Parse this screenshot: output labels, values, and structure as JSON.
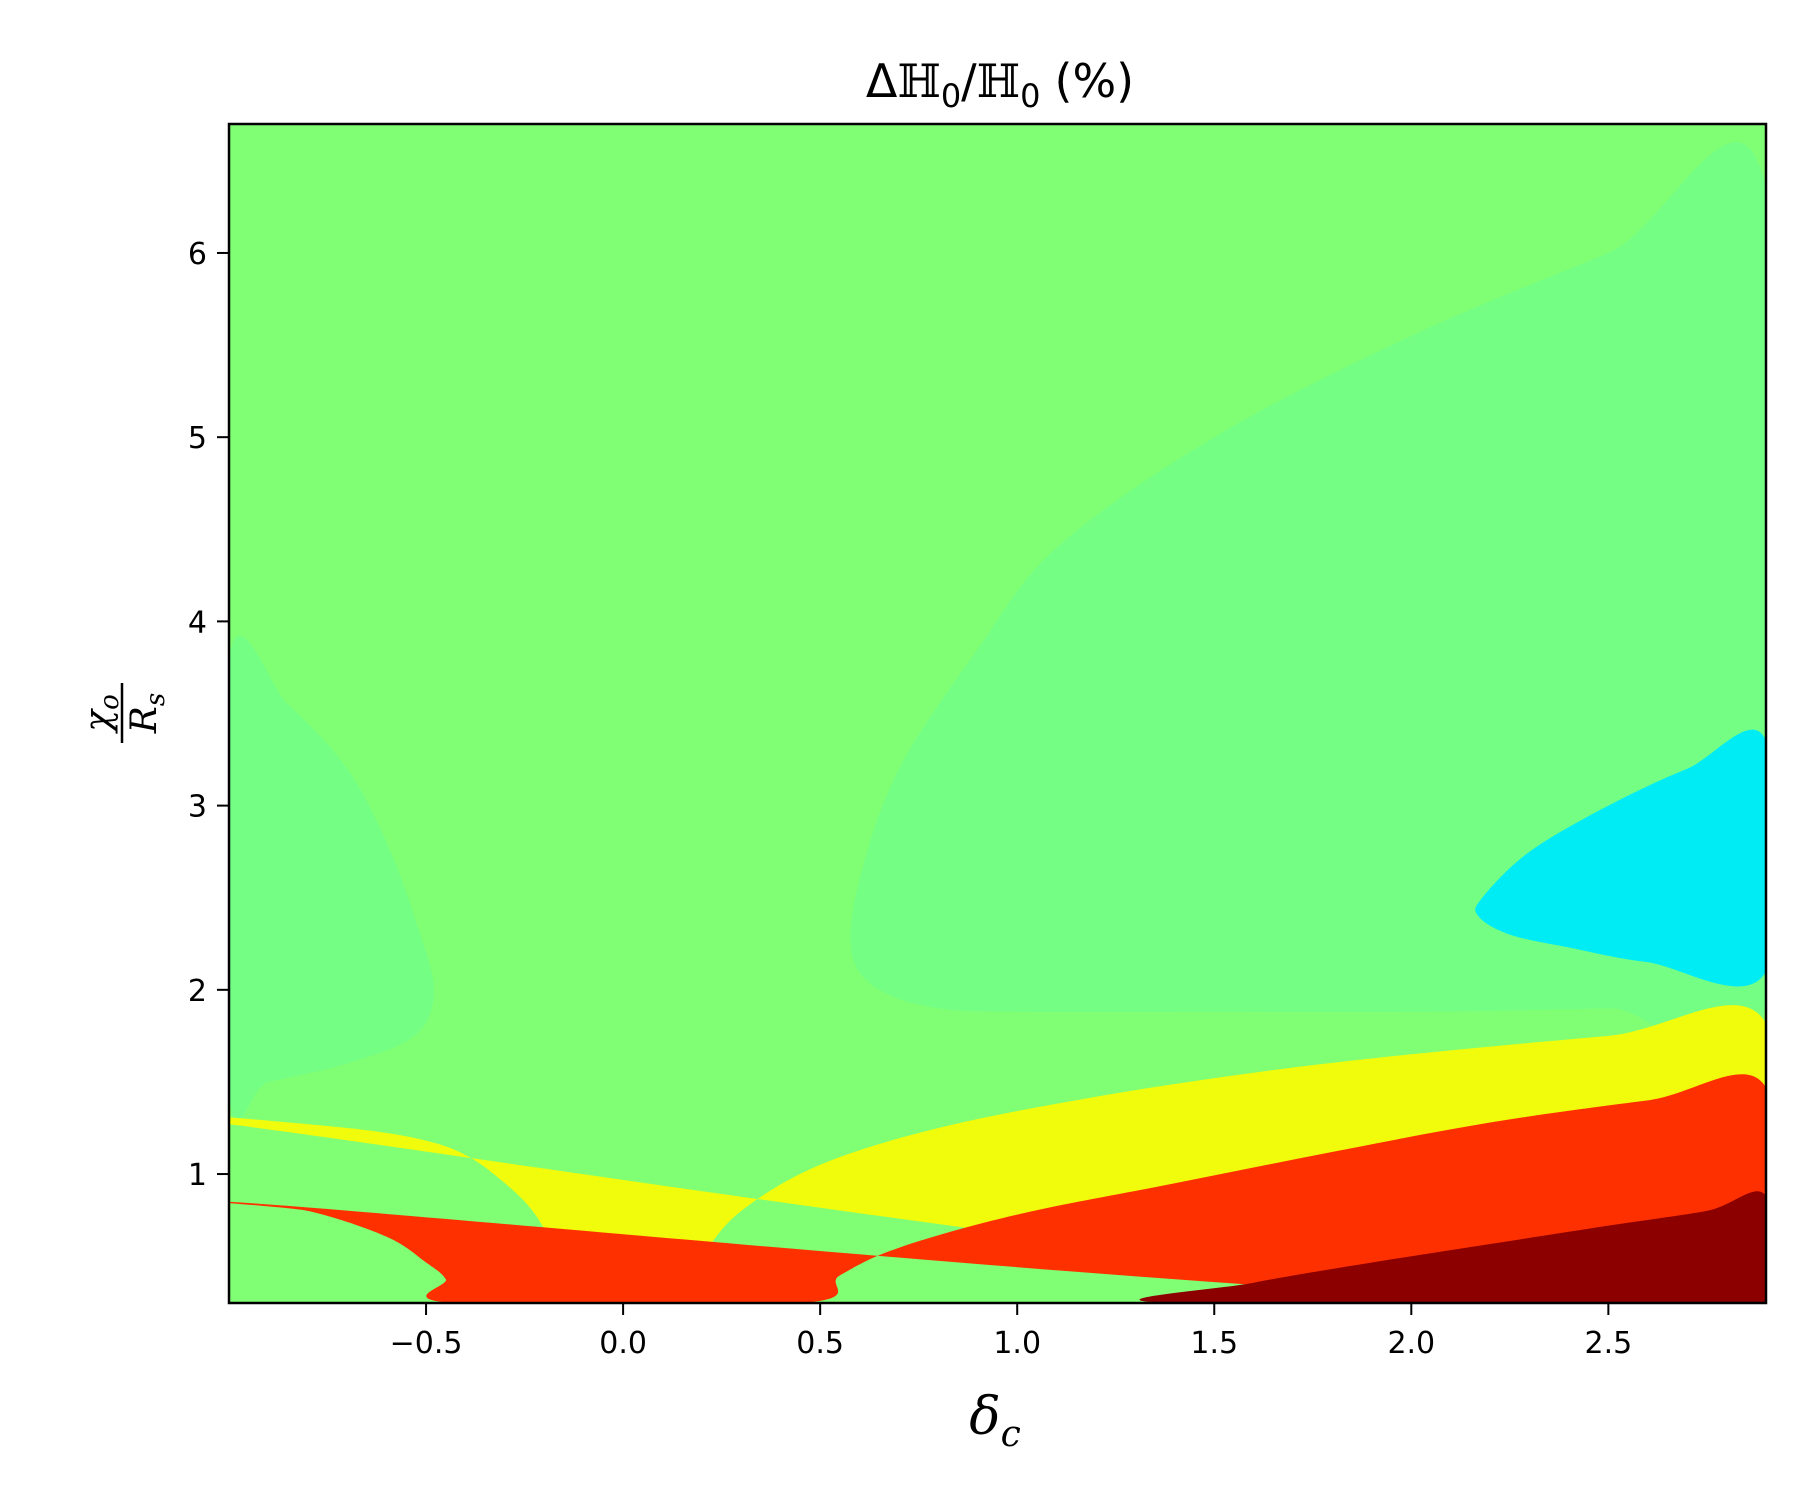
{
  "chart_data": {
    "type": "contour",
    "title": "ΔℍO/ℍO (%)",
    "title_parts": {
      "delta": "Δ",
      "h": "ℍ",
      "sub": "0",
      "slash": "/",
      "unit": "(%)"
    },
    "xlabel": {
      "main": "δ",
      "sub": "c"
    },
    "ylabel": {
      "numerator": "χ",
      "numerator_sub": "o",
      "denominator": "R",
      "denominator_sub": "s"
    },
    "xlim": [
      -1.0,
      2.9
    ],
    "ylim": [
      0.3,
      6.7
    ],
    "xticks": [
      -0.5,
      0.0,
      0.5,
      1.0,
      1.5,
      2.0,
      2.5
    ],
    "xtick_labels": [
      "−0.5",
      "0.0",
      "0.5",
      "1.0",
      "1.5",
      "2.0",
      "2.5"
    ],
    "yticks": [
      1,
      2,
      3,
      4,
      5,
      6
    ],
    "ytick_labels": [
      "1",
      "2",
      "3",
      "4",
      "5",
      "6"
    ],
    "grid": false,
    "legend": "none",
    "levels": [
      {
        "name": "background",
        "color": "#80ff74"
      },
      {
        "name": "upper-right-band",
        "color": "#74ff84"
      },
      {
        "name": "left-lobe",
        "color": "#74ff84"
      },
      {
        "name": "cyan-lobe",
        "color": "#00ecf4"
      },
      {
        "name": "yellow-band",
        "color": "#f0fc0c"
      },
      {
        "name": "red-band",
        "color": "#ff3000"
      },
      {
        "name": "dark-red-band",
        "color": "#8c0000"
      }
    ],
    "regions": [
      {
        "level": "upper-right-band",
        "boundary": [
          [
            2.9,
            6.35
          ],
          [
            2.5,
            6.0
          ],
          [
            2.0,
            5.55
          ],
          [
            1.5,
            5.0
          ],
          [
            1.1,
            4.4
          ],
          [
            0.9,
            3.85
          ],
          [
            0.7,
            3.2
          ],
          [
            0.6,
            2.6
          ],
          [
            0.58,
            2.2
          ],
          [
            0.65,
            2.0
          ],
          [
            0.8,
            1.9
          ],
          [
            1.0,
            1.88
          ],
          [
            1.5,
            1.88
          ],
          [
            2.0,
            1.88
          ],
          [
            2.5,
            1.9
          ],
          [
            2.9,
            1.93
          ]
        ]
      },
      {
        "level": "left-lobe",
        "boundary": [
          [
            -1.0,
            3.8
          ],
          [
            -0.85,
            3.55
          ],
          [
            -0.7,
            3.2
          ],
          [
            -0.6,
            2.8
          ],
          [
            -0.53,
            2.4
          ],
          [
            -0.48,
            2.0
          ],
          [
            -0.53,
            1.75
          ],
          [
            -0.7,
            1.6
          ],
          [
            -0.9,
            1.5
          ],
          [
            -1.0,
            1.45
          ]
        ]
      },
      {
        "level": "cyan-lobe",
        "boundary": [
          [
            2.9,
            3.35
          ],
          [
            2.7,
            3.2
          ],
          [
            2.5,
            3.0
          ],
          [
            2.3,
            2.75
          ],
          [
            2.18,
            2.5
          ],
          [
            2.17,
            2.4
          ],
          [
            2.25,
            2.3
          ],
          [
            2.4,
            2.23
          ],
          [
            2.6,
            2.15
          ],
          [
            2.9,
            2.1
          ]
        ]
      },
      {
        "level": "yellow-band",
        "boundary": [
          [
            -1.0,
            1.27
          ],
          [
            -0.7,
            1.25
          ],
          [
            -0.45,
            1.15
          ],
          [
            -0.3,
            0.95
          ],
          [
            -0.2,
            0.7
          ],
          [
            -0.14,
            0.3
          ],
          [
            0.13,
            0.3
          ],
          [
            0.2,
            0.55
          ],
          [
            0.3,
            0.8
          ],
          [
            0.5,
            1.05
          ],
          [
            0.8,
            1.25
          ],
          [
            1.2,
            1.42
          ],
          [
            1.6,
            1.55
          ],
          [
            2.0,
            1.65
          ],
          [
            2.5,
            1.75
          ],
          [
            2.9,
            1.82
          ],
          [
            2.9,
            0.3
          ]
        ]
      },
      {
        "level": "red-band",
        "boundary": [
          [
            -1.0,
            0.85
          ],
          [
            -0.8,
            0.8
          ],
          [
            -0.6,
            0.66
          ],
          [
            -0.5,
            0.52
          ],
          [
            -0.45,
            0.43
          ],
          [
            -0.43,
            0.3
          ],
          [
            0.45,
            0.3
          ],
          [
            0.55,
            0.45
          ],
          [
            0.7,
            0.6
          ],
          [
            1.0,
            0.78
          ],
          [
            1.4,
            0.95
          ],
          [
            1.8,
            1.12
          ],
          [
            2.2,
            1.28
          ],
          [
            2.6,
            1.4
          ],
          [
            2.9,
            1.47
          ],
          [
            2.9,
            0.3
          ]
        ]
      },
      {
        "level": "dark-red-band",
        "boundary": [
          [
            1.38,
            0.3
          ],
          [
            1.6,
            0.41
          ],
          [
            1.9,
            0.52
          ],
          [
            2.2,
            0.62
          ],
          [
            2.5,
            0.72
          ],
          [
            2.75,
            0.8
          ],
          [
            2.9,
            0.88
          ],
          [
            2.9,
            0.3
          ]
        ]
      }
    ]
  }
}
